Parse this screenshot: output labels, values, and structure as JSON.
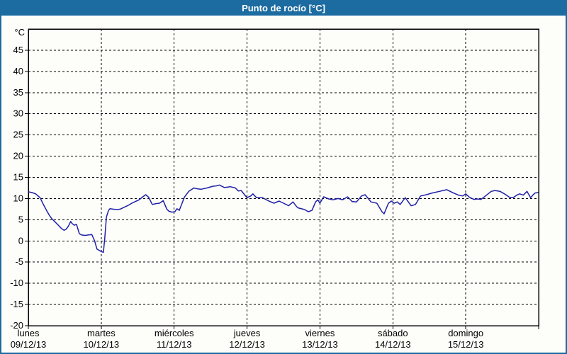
{
  "header": {
    "title": "Punto de rocío [°C]"
  },
  "colors": {
    "frame_blue": "#1c6ba1",
    "header_text": "#ffffff",
    "page_bg": "#fdfdfa",
    "grid": "#000000",
    "line": "#1f1fa8"
  },
  "chart_data": {
    "type": "line",
    "title": "Punto de rocío [°C]",
    "unit_label": "°C",
    "ylim": [
      -20,
      50
    ],
    "ytick_values": [
      45,
      40,
      35,
      30,
      25,
      20,
      15,
      10,
      5,
      0,
      -5,
      -10,
      -15,
      -20
    ],
    "x_total_days": 7,
    "grid_style": "dashed",
    "days": [
      {
        "name": "lunes",
        "date": "09/12/13"
      },
      {
        "name": "martes",
        "date": "10/12/13"
      },
      {
        "name": "miércoles",
        "date": "11/12/13"
      },
      {
        "name": "jueves",
        "date": "12/12/13"
      },
      {
        "name": "viernes",
        "date": "13/12/13"
      },
      {
        "name": "sábado",
        "date": "14/12/13"
      },
      {
        "name": "domingo",
        "date": "15/12/13"
      }
    ],
    "series": [
      {
        "name": "punto de rocío",
        "color": "#1f1fa8",
        "points": [
          [
            0.0,
            11.6
          ],
          [
            0.05,
            11.4
          ],
          [
            0.1,
            11.1
          ],
          [
            0.16,
            10.2
          ],
          [
            0.2,
            8.8
          ],
          [
            0.25,
            7.2
          ],
          [
            0.29,
            6.0
          ],
          [
            0.32,
            5.3
          ],
          [
            0.36,
            4.6
          ],
          [
            0.4,
            3.9
          ],
          [
            0.45,
            3.0
          ],
          [
            0.49,
            2.5
          ],
          [
            0.52,
            2.8
          ],
          [
            0.55,
            3.5
          ],
          [
            0.58,
            4.6
          ],
          [
            0.6,
            4.1
          ],
          [
            0.63,
            3.7
          ],
          [
            0.66,
            3.9
          ],
          [
            0.7,
            1.7
          ],
          [
            0.73,
            1.4
          ],
          [
            0.78,
            1.3
          ],
          [
            0.82,
            1.4
          ],
          [
            0.87,
            1.5
          ],
          [
            0.91,
            0.0
          ],
          [
            0.94,
            -1.9
          ],
          [
            0.97,
            -2.2
          ],
          [
            1.0,
            -2.5
          ],
          [
            1.03,
            -2.7
          ],
          [
            1.05,
            1.0
          ],
          [
            1.07,
            5.6
          ],
          [
            1.1,
            7.2
          ],
          [
            1.12,
            7.6
          ],
          [
            1.16,
            7.5
          ],
          [
            1.22,
            7.4
          ],
          [
            1.26,
            7.5
          ],
          [
            1.32,
            8.0
          ],
          [
            1.36,
            8.3
          ],
          [
            1.43,
            9.0
          ],
          [
            1.52,
            9.7
          ],
          [
            1.57,
            10.4
          ],
          [
            1.61,
            10.9
          ],
          [
            1.65,
            10.3
          ],
          [
            1.7,
            8.6
          ],
          [
            1.75,
            8.8
          ],
          [
            1.8,
            8.9
          ],
          [
            1.85,
            9.5
          ],
          [
            1.9,
            7.5
          ],
          [
            1.93,
            7.0
          ],
          [
            1.97,
            6.8
          ],
          [
            2.01,
            6.9
          ],
          [
            2.04,
            7.6
          ],
          [
            2.07,
            7.2
          ],
          [
            2.1,
            8.5
          ],
          [
            2.14,
            10.3
          ],
          [
            2.2,
            11.7
          ],
          [
            2.27,
            12.5
          ],
          [
            2.32,
            12.3
          ],
          [
            2.37,
            12.2
          ],
          [
            2.45,
            12.5
          ],
          [
            2.53,
            12.9
          ],
          [
            2.58,
            13.0
          ],
          [
            2.62,
            13.2
          ],
          [
            2.69,
            12.6
          ],
          [
            2.77,
            12.8
          ],
          [
            2.84,
            12.5
          ],
          [
            2.88,
            11.8
          ],
          [
            2.92,
            11.9
          ],
          [
            2.97,
            10.8
          ],
          [
            3.0,
            10.2
          ],
          [
            3.05,
            10.6
          ],
          [
            3.08,
            11.1
          ],
          [
            3.13,
            10.2
          ],
          [
            3.21,
            10.2
          ],
          [
            3.3,
            9.4
          ],
          [
            3.37,
            8.9
          ],
          [
            3.44,
            9.4
          ],
          [
            3.5,
            8.9
          ],
          [
            3.57,
            8.3
          ],
          [
            3.63,
            9.2
          ],
          [
            3.68,
            8.1
          ],
          [
            3.7,
            7.8
          ],
          [
            3.79,
            7.4
          ],
          [
            3.84,
            6.9
          ],
          [
            3.89,
            7.2
          ],
          [
            3.94,
            9.2
          ],
          [
            3.97,
            9.7
          ],
          [
            4.0,
            8.9
          ],
          [
            4.05,
            10.4
          ],
          [
            4.12,
            9.9
          ],
          [
            4.18,
            9.7
          ],
          [
            4.25,
            10.0
          ],
          [
            4.31,
            9.7
          ],
          [
            4.38,
            10.4
          ],
          [
            4.44,
            9.3
          ],
          [
            4.5,
            9.2
          ],
          [
            4.57,
            10.6
          ],
          [
            4.62,
            10.9
          ],
          [
            4.7,
            9.2
          ],
          [
            4.78,
            8.9
          ],
          [
            4.85,
            6.9
          ],
          [
            4.88,
            6.4
          ],
          [
            4.94,
            8.9
          ],
          [
            4.98,
            9.4
          ],
          [
            5.02,
            8.9
          ],
          [
            5.06,
            9.2
          ],
          [
            5.1,
            8.6
          ],
          [
            5.17,
            10.2
          ],
          [
            5.25,
            8.3
          ],
          [
            5.31,
            8.6
          ],
          [
            5.38,
            10.6
          ],
          [
            5.46,
            10.9
          ],
          [
            5.54,
            11.3
          ],
          [
            5.64,
            11.7
          ],
          [
            5.74,
            12.1
          ],
          [
            5.83,
            11.3
          ],
          [
            5.9,
            10.8
          ],
          [
            5.96,
            10.6
          ],
          [
            6.0,
            11.1
          ],
          [
            6.05,
            10.3
          ],
          [
            6.11,
            9.8
          ],
          [
            6.16,
            9.9
          ],
          [
            6.21,
            9.8
          ],
          [
            6.27,
            10.6
          ],
          [
            6.35,
            11.7
          ],
          [
            6.4,
            11.9
          ],
          [
            6.47,
            11.7
          ],
          [
            6.53,
            11.1
          ],
          [
            6.6,
            10.3
          ],
          [
            6.65,
            10.2
          ],
          [
            6.7,
            10.8
          ],
          [
            6.74,
            11.1
          ],
          [
            6.79,
            10.8
          ],
          [
            6.84,
            11.7
          ],
          [
            6.89,
            10.2
          ],
          [
            6.92,
            10.8
          ],
          [
            6.95,
            11.3
          ],
          [
            6.99,
            11.4
          ]
        ]
      }
    ]
  }
}
